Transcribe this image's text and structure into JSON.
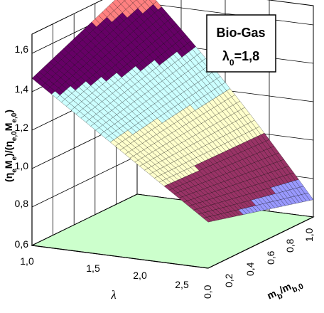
{
  "chart_data": {
    "type": "surface3d",
    "title": "",
    "annotation": {
      "line1": "Bio-Gas",
      "line2": "λ0=1,8",
      "symbol": "λ",
      "subscript": "0",
      "value": "=1,8"
    },
    "z_axis": {
      "label": "(ηeMe)/(ηe,0Me,0)",
      "range": [
        0.6,
        1.7
      ],
      "ticks": [
        "0,6",
        "0,8",
        "1,0",
        "1,2",
        "1,4",
        "1,6"
      ]
    },
    "x_axis": {
      "label": "λ",
      "range": [
        1.0,
        2.8
      ],
      "ticks": [
        "1,0",
        "1,5",
        "2,0",
        "2,5"
      ]
    },
    "y_axis": {
      "label": "mb/mb,0",
      "range": [
        0.0,
        1.0
      ],
      "ticks": [
        "0,0",
        "0,2",
        "0,4",
        "0,6",
        "0,8",
        "1,0"
      ]
    },
    "grid": true,
    "floor_color": "#ccffcc",
    "color_bands": [
      {
        "from": 0.6,
        "to": 0.8,
        "color": "#9999ff"
      },
      {
        "from": 0.8,
        "to": 1.0,
        "color": "#993366"
      },
      {
        "from": 1.0,
        "to": 1.2,
        "color": "#ffffcc"
      },
      {
        "from": 1.2,
        "to": 1.4,
        "color": "#ccffff"
      },
      {
        "from": 1.4,
        "to": 1.6,
        "color": "#660066"
      },
      {
        "from": 1.6,
        "to": 1.8,
        "color": "#ff8080"
      }
    ],
    "corner_values": {
      "lambda_1.0_m_1.0": 1.47,
      "lambda_1.0_m_0.0": 1.72,
      "lambda_2.8_m_1.0": 0.84,
      "lambda_2.8_m_0.0": 0.69
    }
  }
}
